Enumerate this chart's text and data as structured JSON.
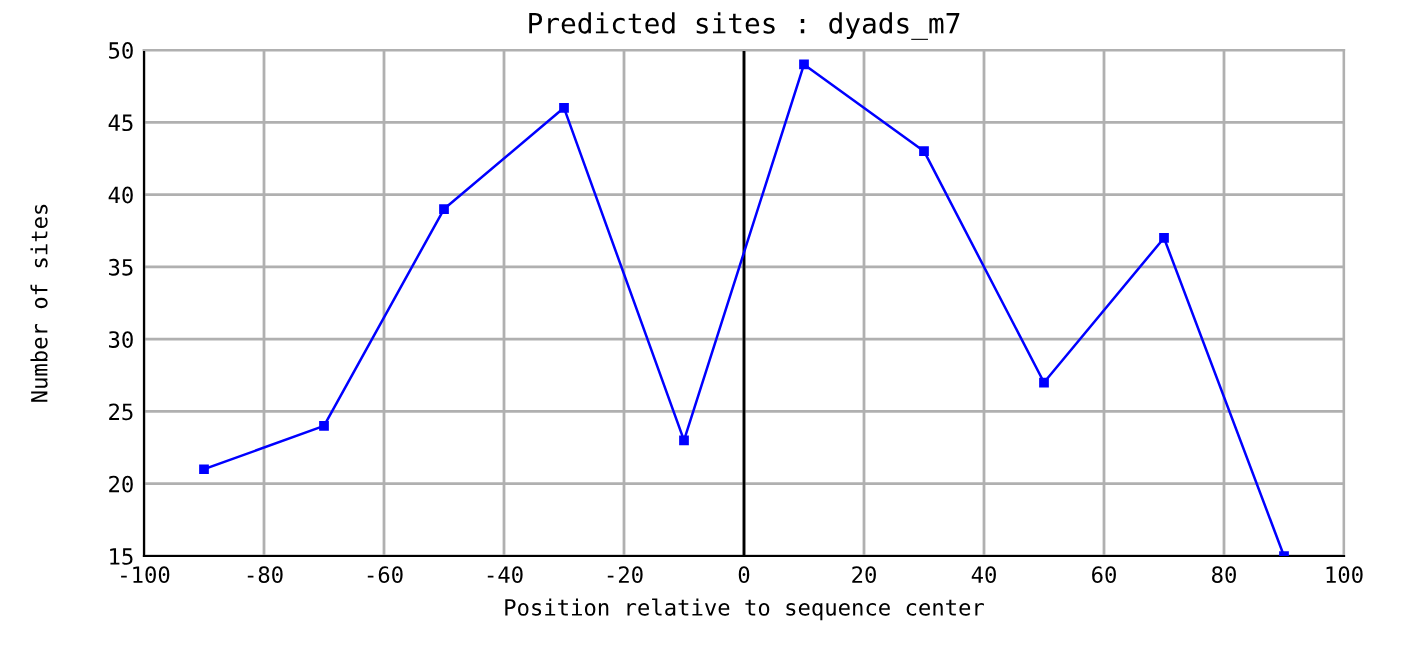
{
  "chart_data": {
    "type": "line",
    "title": "Predicted sites : dyads_m7",
    "xlabel": "Position relative to sequence center",
    "ylabel": "Number of sites",
    "x": [
      -90,
      -70,
      -50,
      -30,
      -10,
      10,
      30,
      50,
      70,
      90
    ],
    "series": [
      {
        "color": "#0000ff",
        "values": [
          21,
          24,
          39,
          46,
          23,
          49,
          43,
          27,
          37,
          15
        ]
      }
    ],
    "xlim": [
      -100,
      100
    ],
    "xticks": [
      -100,
      -80,
      -60,
      -40,
      -20,
      0,
      20,
      40,
      60,
      80,
      100
    ],
    "ylim": [
      15,
      50
    ],
    "yticks": [
      15,
      20,
      25,
      30,
      35,
      40,
      45,
      50
    ],
    "ref_lines": [
      {
        "axis": "x",
        "value": 0,
        "color": "#000000"
      }
    ],
    "grid": true,
    "marker": "square",
    "line_style": "solid"
  }
}
